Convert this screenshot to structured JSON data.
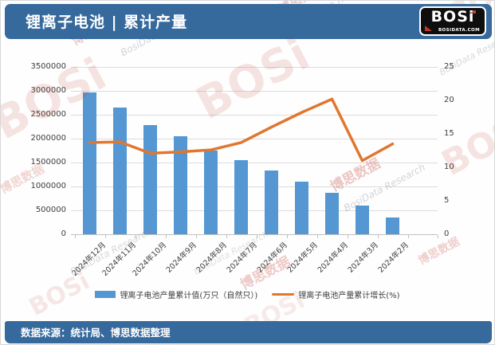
{
  "header": {
    "title": "锂离子电池 | 累计产量",
    "logo": {
      "text": "BOSi",
      "domain": "BOSIDATA.COM"
    }
  },
  "watermark": {
    "brand": "BOSi",
    "brand_cn": "博思数据",
    "research": "BosiData Research"
  },
  "chart_data": {
    "type": "bar",
    "subtype": "bar-line-combo",
    "title": "锂离子电池 | 累计产量",
    "categories": [
      "2024年12月",
      "2024年11月",
      "2024年10月",
      "2024年9月",
      "2024年8月",
      "2024年7月",
      "2024年6月",
      "2024年5月",
      "2024年4月",
      "2024年3月",
      "2024年2月"
    ],
    "series": [
      {
        "name": "锂离子电池产量累计值(万只（自然只）)",
        "type": "bar",
        "axis": "left",
        "color": "#5497d3",
        "values": [
          2960000,
          2650000,
          2285000,
          2050000,
          1750000,
          1550000,
          1330000,
          1105000,
          870000,
          605000,
          355000
        ]
      },
      {
        "name": "锂离子电池产量累计增长(%)",
        "type": "line",
        "axis": "right",
        "color": "#e0772f",
        "values": [
          13.7,
          13.8,
          12.1,
          12.3,
          12.6,
          13.7,
          16.0,
          18.2,
          20.2,
          11.0,
          13.5
        ]
      }
    ],
    "left_axis": {
      "min": 0,
      "max": 3500000,
      "step": 500000,
      "ticks": [
        "3500000",
        "3000000",
        "2500000",
        "2000000",
        "1500000",
        "1000000",
        "500000",
        "0"
      ]
    },
    "right_axis": {
      "min": 0,
      "max": 25,
      "step": 5,
      "ticks": [
        "25",
        "20",
        "15",
        "10",
        "5",
        "0"
      ]
    },
    "grid": true,
    "legend_position": "bottom"
  },
  "footer": {
    "source": "数据来源：统计局、博思数据整理"
  }
}
